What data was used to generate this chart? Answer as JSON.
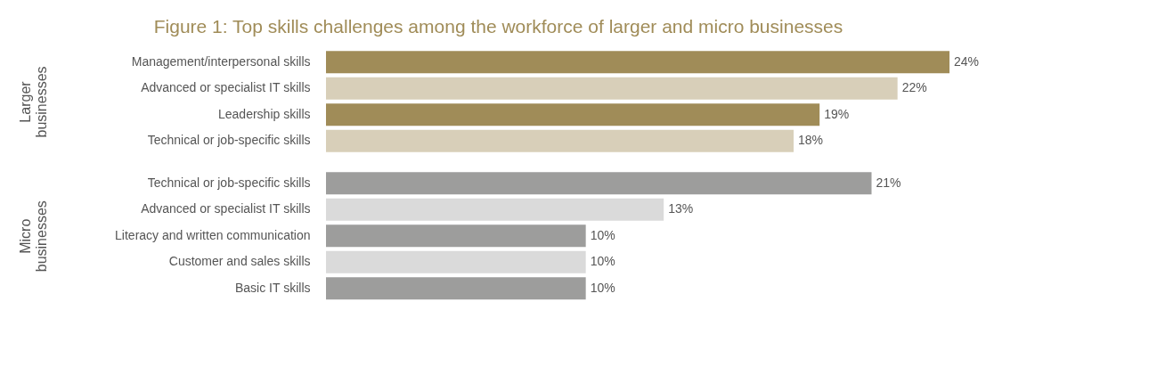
{
  "chart_data": [
    {
      "type": "bar",
      "orientation": "horizontal",
      "title": "Figure 1: Top skills challenges among the workforce of larger and micro businesses",
      "ylabel": "Larger businesses",
      "categories": [
        "Management/interpersonal skills",
        "Advanced or specialist IT skills",
        "Leadership skills",
        "Technical or job-specific skills"
      ],
      "values": [
        24,
        22,
        19,
        18
      ],
      "colors": [
        "#a08c58",
        "#d8cfb9",
        "#a08c58",
        "#d8cfb9"
      ],
      "value_labels": [
        "24%",
        "22%",
        "19%",
        "18%"
      ]
    },
    {
      "type": "bar",
      "orientation": "horizontal",
      "ylabel": "Micro businesses",
      "categories": [
        "Technical or job-specific skills",
        "Advanced or specialist IT skills",
        "Literacy and written communication",
        "Customer and sales skills",
        "Basic IT skills"
      ],
      "values": [
        21,
        13,
        10,
        10,
        10
      ],
      "colors": [
        "#9d9d9c",
        "#dadada",
        "#9d9d9c",
        "#dadada",
        "#9d9d9c"
      ],
      "value_labels": [
        "21%",
        "13%",
        "10%",
        "10%",
        "10%"
      ]
    }
  ]
}
